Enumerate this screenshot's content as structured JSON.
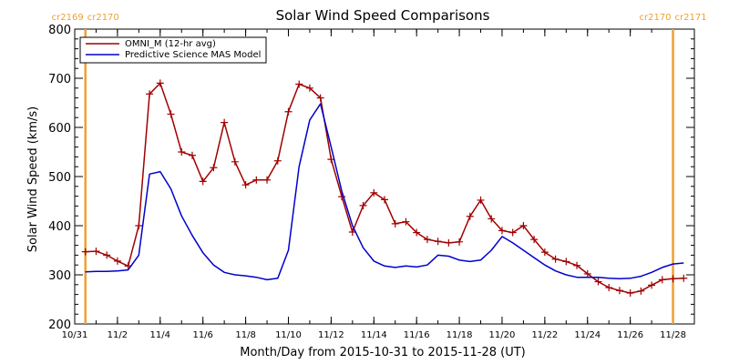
{
  "chart_data": {
    "type": "line",
    "title": "Solar Wind Speed Comparisons",
    "xlabel": "Month/Day from 2015-10-31 to 2015-11-28 (UT)",
    "ylabel": "Solar Wind Speed (km/s)",
    "xlim": [
      "2015-10-31",
      "2015-11-29"
    ],
    "ylim": [
      200,
      800
    ],
    "x_ticks": [
      {
        "date": "2015-10-31",
        "label": "10/31"
      },
      {
        "date": "2015-11-02",
        "label": "11/2"
      },
      {
        "date": "2015-11-04",
        "label": "11/4"
      },
      {
        "date": "2015-11-06",
        "label": "11/6"
      },
      {
        "date": "2015-11-08",
        "label": "11/8"
      },
      {
        "date": "2015-11-10",
        "label": "11/10"
      },
      {
        "date": "2015-11-12",
        "label": "11/12"
      },
      {
        "date": "2015-11-14",
        "label": "11/14"
      },
      {
        "date": "2015-11-16",
        "label": "11/16"
      },
      {
        "date": "2015-11-18",
        "label": "11/18"
      },
      {
        "date": "2015-11-20",
        "label": "11/20"
      },
      {
        "date": "2015-11-22",
        "label": "11/22"
      },
      {
        "date": "2015-11-24",
        "label": "11/24"
      },
      {
        "date": "2015-11-26",
        "label": "11/26"
      },
      {
        "date": "2015-11-28",
        "label": "11/28"
      }
    ],
    "y_ticks": [
      {
        "value": 200,
        "label": "200"
      },
      {
        "value": 300,
        "label": "300"
      },
      {
        "value": 400,
        "label": "400"
      },
      {
        "value": 500,
        "label": "500"
      },
      {
        "value": 600,
        "label": "600"
      },
      {
        "value": 700,
        "label": "700"
      },
      {
        "value": 800,
        "label": "800"
      }
    ],
    "legend_position": "top-left",
    "grid": false,
    "series": [
      {
        "name": "OMNI_M (12-hr avg)",
        "color": "#a00000",
        "marker": "plus",
        "x": [
          "2015-10-31 12:00",
          "2015-11-01 00:00",
          "2015-11-01 12:00",
          "2015-11-02 00:00",
          "2015-11-02 12:00",
          "2015-11-03 00:00",
          "2015-11-03 12:00",
          "2015-11-04 00:00",
          "2015-11-04 12:00",
          "2015-11-05 00:00",
          "2015-11-05 12:00",
          "2015-11-06 00:00",
          "2015-11-06 12:00",
          "2015-11-07 00:00",
          "2015-11-07 12:00",
          "2015-11-08 00:00",
          "2015-11-08 12:00",
          "2015-11-09 00:00",
          "2015-11-09 12:00",
          "2015-11-10 00:00",
          "2015-11-10 12:00",
          "2015-11-11 00:00",
          "2015-11-11 12:00",
          "2015-11-12 00:00",
          "2015-11-12 12:00",
          "2015-11-13 00:00",
          "2015-11-13 12:00",
          "2015-11-14 00:00",
          "2015-11-14 12:00",
          "2015-11-15 00:00",
          "2015-11-15 12:00",
          "2015-11-16 00:00",
          "2015-11-16 12:00",
          "2015-11-17 00:00",
          "2015-11-17 12:00",
          "2015-11-18 00:00",
          "2015-11-18 12:00",
          "2015-11-19 00:00",
          "2015-11-19 12:00",
          "2015-11-20 00:00",
          "2015-11-20 12:00",
          "2015-11-21 00:00",
          "2015-11-21 12:00",
          "2015-11-22 00:00",
          "2015-11-22 12:00",
          "2015-11-23 00:00",
          "2015-11-23 12:00",
          "2015-11-24 00:00",
          "2015-11-24 12:00",
          "2015-11-25 00:00",
          "2015-11-25 12:00",
          "2015-11-26 00:00",
          "2015-11-26 12:00",
          "2015-11-27 00:00",
          "2015-11-27 12:00",
          "2015-11-28 00:00",
          "2015-11-28 12:00"
        ],
        "values": [
          347,
          348,
          340,
          328,
          318,
          400,
          668,
          690,
          627,
          550,
          543,
          490,
          518,
          610,
          530,
          483,
          493,
          493,
          532,
          632,
          688,
          680,
          660,
          535,
          459,
          387,
          441,
          467,
          453,
          404,
          408,
          386,
          372,
          368,
          365,
          367,
          419,
          452,
          414,
          390,
          386,
          400,
          372,
          346,
          332,
          327,
          319,
          302,
          286,
          274,
          268,
          263,
          267,
          279,
          290,
          292,
          293
        ]
      },
      {
        "name": "Predictive Science MAS Model",
        "color": "#0000cc",
        "marker": "none",
        "x": [
          "2015-10-31 12:00",
          "2015-11-01 00:00",
          "2015-11-01 12:00",
          "2015-11-02 00:00",
          "2015-11-02 12:00",
          "2015-11-03 00:00",
          "2015-11-03 12:00",
          "2015-11-04 00:00",
          "2015-11-04 12:00",
          "2015-11-05 00:00",
          "2015-11-05 12:00",
          "2015-11-06 00:00",
          "2015-11-06 12:00",
          "2015-11-07 00:00",
          "2015-11-07 12:00",
          "2015-11-08 00:00",
          "2015-11-08 12:00",
          "2015-11-09 00:00",
          "2015-11-09 12:00",
          "2015-11-10 00:00",
          "2015-11-10 12:00",
          "2015-11-11 00:00",
          "2015-11-11 12:00",
          "2015-11-12 00:00",
          "2015-11-12 12:00",
          "2015-11-13 00:00",
          "2015-11-13 12:00",
          "2015-11-14 00:00",
          "2015-11-14 12:00",
          "2015-11-15 00:00",
          "2015-11-15 12:00",
          "2015-11-16 00:00",
          "2015-11-16 12:00",
          "2015-11-17 00:00",
          "2015-11-17 12:00",
          "2015-11-18 00:00",
          "2015-11-18 12:00",
          "2015-11-19 00:00",
          "2015-11-19 12:00",
          "2015-11-20 00:00",
          "2015-11-20 12:00",
          "2015-11-21 00:00",
          "2015-11-21 12:00",
          "2015-11-22 00:00",
          "2015-11-22 12:00",
          "2015-11-23 00:00",
          "2015-11-23 12:00",
          "2015-11-24 00:00",
          "2015-11-24 12:00",
          "2015-11-25 00:00",
          "2015-11-25 12:00",
          "2015-11-26 00:00",
          "2015-11-26 12:00",
          "2015-11-27 00:00",
          "2015-11-27 12:00",
          "2015-11-28 00:00",
          "2015-11-28 12:00"
        ],
        "values": [
          306,
          307,
          307,
          308,
          310,
          340,
          505,
          510,
          475,
          420,
          380,
          345,
          320,
          305,
          300,
          298,
          295,
          290,
          293,
          350,
          520,
          615,
          648,
          560,
          470,
          400,
          355,
          328,
          318,
          315,
          318,
          316,
          320,
          340,
          338,
          330,
          327,
          330,
          350,
          378,
          365,
          350,
          335,
          320,
          308,
          300,
          295,
          295,
          295,
          293,
          292,
          293,
          297,
          305,
          315,
          322,
          324
        ]
      }
    ],
    "annotations": [
      {
        "date": "2015-10-31 12:00",
        "left_label": "cr2169",
        "right_label": "cr2170",
        "color": "#f0a030"
      },
      {
        "date": "2015-11-28 00:00",
        "left_label": "cr2170",
        "right_label": "cr2171",
        "color": "#f0a030"
      }
    ]
  }
}
